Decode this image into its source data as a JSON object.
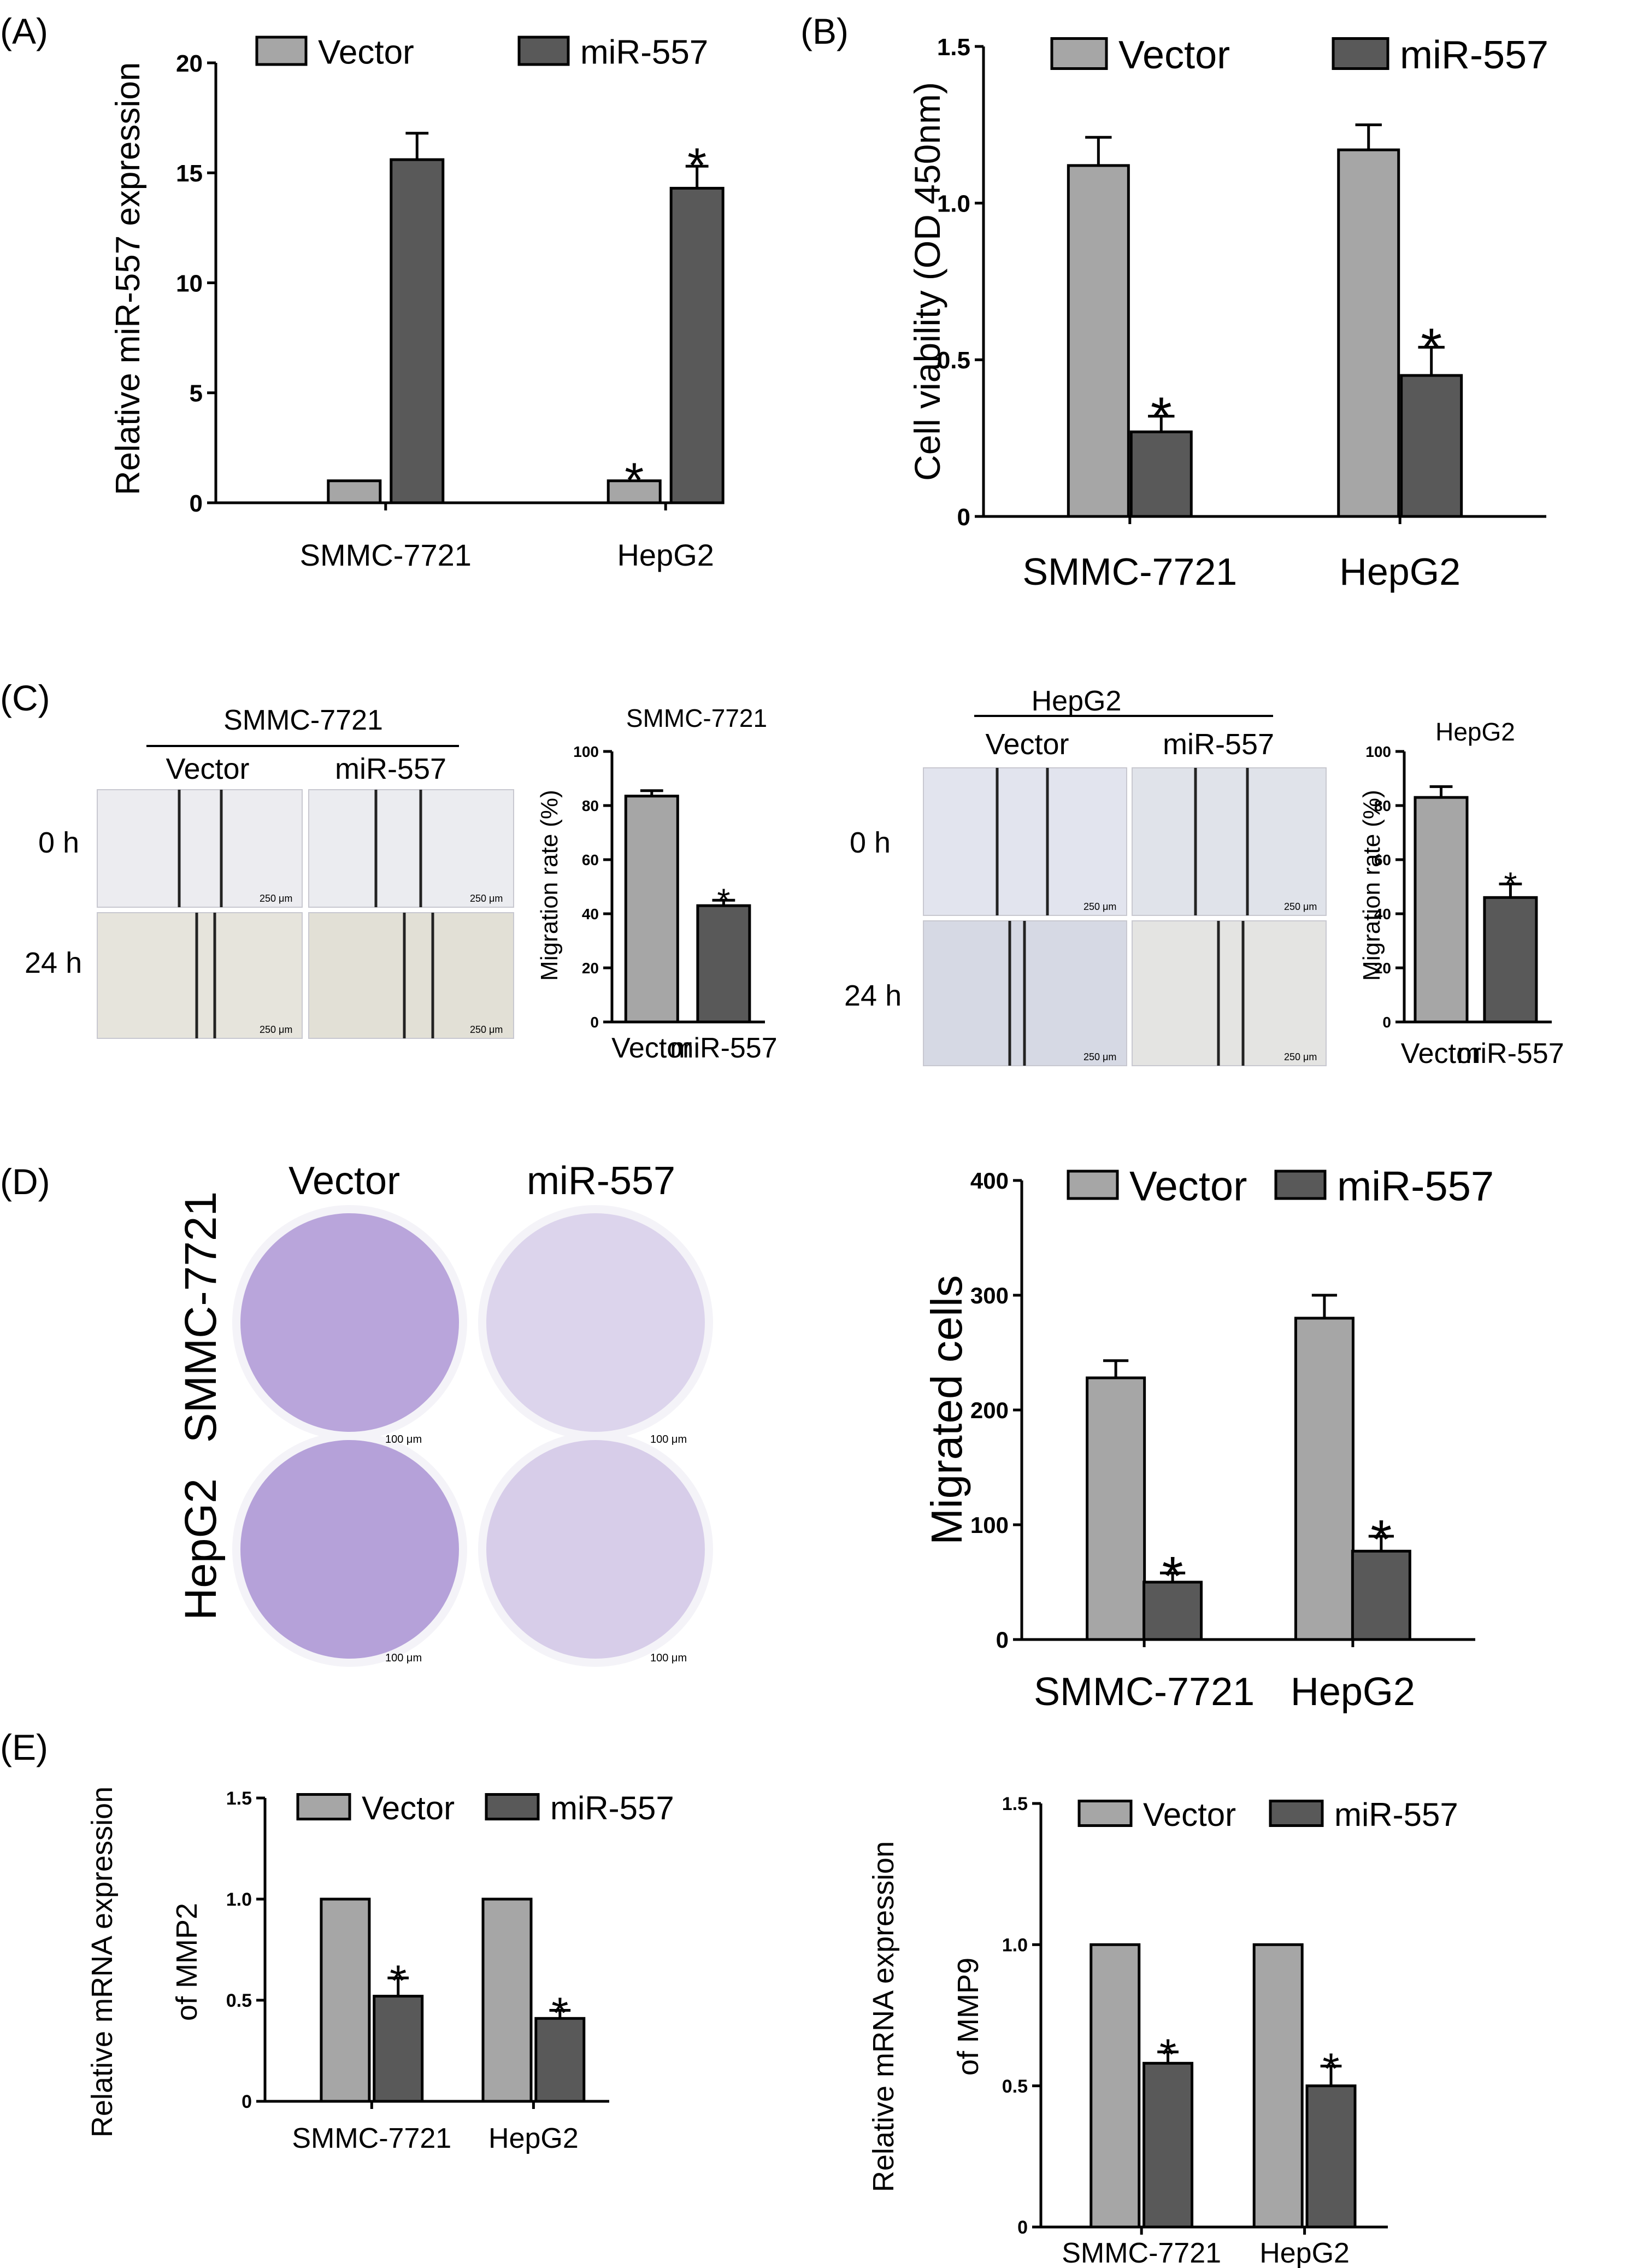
{
  "colors": {
    "vector": "#a6a6a6",
    "mir": "#595959",
    "scratch_bg_A": "#ececf0",
    "scratch_bg_B": "#e2e4ee",
    "transwell_bg": "#f4f3f8",
    "stain": "#7048b8"
  },
  "panels": {
    "A": "(A)",
    "B": "(B)",
    "C": "(C)",
    "D": "(D)",
    "E": "(E)"
  },
  "legend": {
    "vector": "Vector",
    "mir": "miR-557"
  },
  "significance": "*",
  "panelC": {
    "left_group": "SMMC-7721",
    "right_group": "HepG2",
    "col_vector": "Vector",
    "col_mir": "miR-557",
    "row_0h": "0 h",
    "row_24h": "24 h",
    "scale_bar": "250 μm"
  },
  "panelD": {
    "col_vector": "Vector",
    "col_mir": "miR-557",
    "row_smmc": "SMMC-7721",
    "row_hepg2": "HepG2",
    "scale_bar": "100 μm"
  },
  "chart_data": [
    {
      "id": "A",
      "type": "bar",
      "categories": [
        "SMMC-7721",
        "HepG2"
      ],
      "series": [
        {
          "name": "Vector",
          "values": [
            1.0,
            1.0
          ],
          "errors": [
            0,
            0
          ]
        },
        {
          "name": "miR-557",
          "values": [
            15.6,
            14.3
          ],
          "errors": [
            1.2,
            1.0
          ]
        }
      ],
      "significant": [
        [
          false,
          true
        ],
        [
          false,
          true
        ]
      ],
      "ylabel": "Relative miR-557 expression",
      "ylim": [
        0,
        20
      ],
      "yticks": [
        0,
        5,
        10,
        15,
        20
      ],
      "yticklabels": [
        "0",
        "5",
        "10",
        "15",
        "20"
      ]
    },
    {
      "id": "B",
      "type": "bar",
      "categories": [
        "SMMC-7721",
        "HepG2"
      ],
      "series": [
        {
          "name": "Vector",
          "values": [
            1.12,
            1.17
          ],
          "errors": [
            0.09,
            0.08
          ]
        },
        {
          "name": "miR-557",
          "values": [
            0.27,
            0.45
          ],
          "errors": [
            0.05,
            0.09
          ]
        }
      ],
      "significant": [
        [
          false,
          false
        ],
        [
          true,
          true
        ]
      ],
      "ylabel": "Cell viability (OD 450nm)",
      "ylim": [
        0,
        1.5
      ],
      "yticks": [
        0,
        0.5,
        1.0,
        1.5
      ],
      "yticklabels": [
        "0",
        "0.5",
        "1.0",
        "1.5"
      ]
    },
    {
      "id": "C1",
      "type": "bar",
      "title": "SMMC-7721",
      "categories": [
        "Vector",
        "miR-557"
      ],
      "values": [
        83.5,
        43.0
      ],
      "errors": [
        2.0,
        2.0
      ],
      "significant": [
        false,
        true
      ],
      "ylabel": "Migration rate (%)",
      "ylim": [
        0,
        100
      ],
      "yticks": [
        0,
        20,
        40,
        60,
        80,
        100
      ],
      "yticklabels": [
        "0",
        "20",
        "40",
        "60",
        "80",
        "100"
      ]
    },
    {
      "id": "C2",
      "type": "bar",
      "title": "HepG2",
      "categories": [
        "Vector",
        "miR-557"
      ],
      "values": [
        83.0,
        46.0
      ],
      "errors": [
        4.0,
        5.0
      ],
      "significant": [
        false,
        true
      ],
      "ylabel": "Migration rate (%)",
      "ylim": [
        0,
        100
      ],
      "yticks": [
        0,
        20,
        40,
        60,
        80,
        100
      ],
      "yticklabels": [
        "0",
        "20",
        "40",
        "60",
        "80",
        "100"
      ]
    },
    {
      "id": "D",
      "type": "bar",
      "categories": [
        "SMMC-7721",
        "HepG2"
      ],
      "series": [
        {
          "name": "Vector",
          "values": [
            228,
            280
          ],
          "errors": [
            15,
            20
          ]
        },
        {
          "name": "miR-557",
          "values": [
            50,
            77
          ],
          "errors": [
            8,
            13
          ]
        }
      ],
      "significant": [
        [
          false,
          false
        ],
        [
          true,
          true
        ]
      ],
      "ylabel": "Migrated cells",
      "ylim": [
        0,
        400
      ],
      "yticks": [
        0,
        100,
        200,
        300,
        400
      ],
      "yticklabels": [
        "0",
        "100",
        "200",
        "300",
        "400"
      ]
    },
    {
      "id": "E1",
      "type": "bar",
      "categories": [
        "SMMC-7721",
        "HepG2"
      ],
      "series": [
        {
          "name": "Vector",
          "values": [
            1.0,
            1.0
          ],
          "errors": [
            0,
            0
          ]
        },
        {
          "name": "miR-557",
          "values": [
            0.52,
            0.41
          ],
          "errors": [
            0.09,
            0.04
          ]
        }
      ],
      "significant": [
        [
          false,
          false
        ],
        [
          true,
          true
        ]
      ],
      "ylabel": [
        "Relative mRNA expression",
        "of MMP2"
      ],
      "ylim": [
        0,
        1.5
      ],
      "yticks": [
        0,
        0.5,
        1.0,
        1.5
      ],
      "yticklabels": [
        "0",
        "0.5",
        "1.0",
        "1.5"
      ]
    },
    {
      "id": "E2",
      "type": "bar",
      "categories": [
        "SMMC-7721",
        "HepG2"
      ],
      "series": [
        {
          "name": "Vector",
          "values": [
            1.0,
            1.0
          ],
          "errors": [
            0,
            0
          ]
        },
        {
          "name": "miR-557",
          "values": [
            0.58,
            0.5
          ],
          "errors": [
            0.04,
            0.07
          ]
        }
      ],
      "significant": [
        [
          false,
          false
        ],
        [
          true,
          true
        ]
      ],
      "ylabel": [
        "Relative mRNA expression",
        "of MMP9"
      ],
      "ylim": [
        0,
        1.5
      ],
      "yticks": [
        0,
        0.5,
        1.0,
        1.5
      ],
      "yticklabels": [
        "0",
        "0.5",
        "1.0",
        "1.5"
      ]
    }
  ]
}
